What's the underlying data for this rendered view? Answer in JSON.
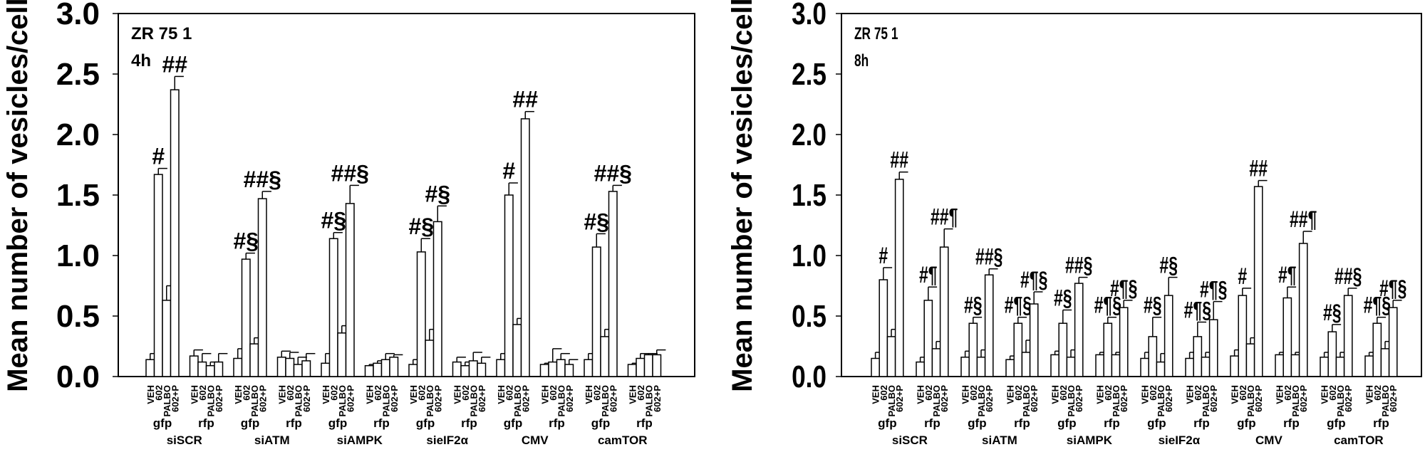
{
  "chart_data": [
    {
      "type": "bar",
      "title_lines": [
        "ZR 75 1",
        "4h"
      ],
      "ylabel": "Mean number of vesicles/cell",
      "ylim": [
        0,
        3
      ],
      "yticks": [
        "0.0",
        "0.5",
        "1.0",
        "1.5",
        "2.0",
        "2.5",
        "3.0"
      ],
      "treatments": [
        "VEH",
        "602",
        "PALBO",
        "602+P"
      ],
      "clusters": [
        {
          "group": "siSCR",
          "cell": "gfp",
          "values": [
            0.14,
            1.67,
            0.63,
            2.37
          ],
          "err_upper": [
            0.19,
            1.72,
            0.75,
            2.48
          ],
          "annotations": [
            "",
            "#",
            "",
            "##"
          ]
        },
        {
          "group": "siSCR",
          "cell": "rfp",
          "values": [
            0.17,
            0.12,
            0.09,
            0.12
          ],
          "err_upper": [
            0.22,
            0.19,
            0.12,
            0.19
          ],
          "annotations": [
            "",
            "",
            "",
            ""
          ]
        },
        {
          "group": "siATM",
          "cell": "gfp",
          "values": [
            0.15,
            0.97,
            0.27,
            1.47
          ],
          "err_upper": [
            0.23,
            1.02,
            0.32,
            1.53
          ],
          "annotations": [
            "",
            "#§",
            "",
            "##§"
          ]
        },
        {
          "group": "siATM",
          "cell": "rfp",
          "values": [
            0.16,
            0.15,
            0.1,
            0.13
          ],
          "err_upper": [
            0.21,
            0.2,
            0.16,
            0.19
          ],
          "annotations": [
            "",
            "",
            "",
            ""
          ]
        },
        {
          "group": "siAMPK",
          "cell": "gfp",
          "values": [
            0.11,
            1.14,
            0.36,
            1.43
          ],
          "err_upper": [
            0.19,
            1.19,
            0.42,
            1.58
          ],
          "annotations": [
            "",
            "#§",
            "",
            "##§"
          ]
        },
        {
          "group": "siAMPK",
          "cell": "rfp",
          "values": [
            0.09,
            0.11,
            0.14,
            0.16
          ],
          "err_upper": [
            0.1,
            0.13,
            0.19,
            0.18
          ],
          "annotations": [
            "",
            "",
            "",
            ""
          ]
        },
        {
          "group": "sieIF2α",
          "cell": "gfp",
          "values": [
            0.1,
            1.03,
            0.3,
            1.28
          ],
          "err_upper": [
            0.14,
            1.14,
            0.39,
            1.41
          ],
          "annotations": [
            "",
            "#§",
            "",
            "#§"
          ]
        },
        {
          "group": "sieIF2α",
          "cell": "rfp",
          "values": [
            0.12,
            0.09,
            0.13,
            0.11
          ],
          "err_upper": [
            0.16,
            0.12,
            0.2,
            0.16
          ],
          "annotations": [
            "",
            "",
            "",
            ""
          ]
        },
        {
          "group": "CMV",
          "cell": "gfp",
          "values": [
            0.14,
            1.5,
            0.43,
            2.13
          ],
          "err_upper": [
            0.19,
            1.6,
            0.48,
            2.19
          ],
          "annotations": [
            "",
            "#",
            "",
            "##"
          ]
        },
        {
          "group": "CMV",
          "cell": "rfp",
          "values": [
            0.1,
            0.12,
            0.14,
            0.1
          ],
          "err_upper": [
            0.11,
            0.23,
            0.19,
            0.14
          ],
          "annotations": [
            "",
            "",
            "",
            ""
          ]
        },
        {
          "group": "camTOR",
          "cell": "gfp",
          "values": [
            0.14,
            1.07,
            0.33,
            1.53
          ],
          "err_upper": [
            0.19,
            1.18,
            0.39,
            1.58
          ],
          "annotations": [
            "",
            "#§",
            "",
            "##§"
          ]
        },
        {
          "group": "camTOR",
          "cell": "rfp",
          "values": [
            0.1,
            0.15,
            0.18,
            0.18
          ],
          "err_upper": [
            0.11,
            0.19,
            0.19,
            0.22
          ],
          "annotations": [
            "",
            "",
            "",
            ""
          ]
        }
      ]
    },
    {
      "type": "bar",
      "title_lines": [
        "ZR 75 1",
        "8h"
      ],
      "ylabel": "Mean number of vesicles/cell",
      "ylim": [
        0,
        3
      ],
      "yticks": [
        "0.0",
        "0.5",
        "1.0",
        "1.5",
        "2.0",
        "2.5",
        "3.0"
      ],
      "treatments": [
        "VEH",
        "602",
        "PALBO",
        "602+P"
      ],
      "clusters": [
        {
          "group": "siSCR",
          "cell": "gfp",
          "values": [
            0.15,
            0.8,
            0.33,
            1.63
          ],
          "err_upper": [
            0.2,
            0.9,
            0.39,
            1.69
          ],
          "annotations": [
            "",
            "#",
            "",
            "##"
          ]
        },
        {
          "group": "siSCR",
          "cell": "rfp",
          "values": [
            0.12,
            0.63,
            0.23,
            1.07
          ],
          "err_upper": [
            0.16,
            0.74,
            0.29,
            1.22
          ],
          "annotations": [
            "",
            "#¶",
            "",
            "##¶"
          ]
        },
        {
          "group": "siATM",
          "cell": "gfp",
          "values": [
            0.16,
            0.44,
            0.16,
            0.84
          ],
          "err_upper": [
            0.21,
            0.49,
            0.22,
            0.89
          ],
          "annotations": [
            "",
            "#§",
            "",
            "##§"
          ]
        },
        {
          "group": "siATM",
          "cell": "rfp",
          "values": [
            0.14,
            0.44,
            0.2,
            0.6
          ],
          "err_upper": [
            0.17,
            0.49,
            0.3,
            0.7
          ],
          "annotations": [
            "",
            "#¶§",
            "",
            "#¶§"
          ]
        },
        {
          "group": "siAMPK",
          "cell": "gfp",
          "values": [
            0.18,
            0.44,
            0.16,
            0.77
          ],
          "err_upper": [
            0.21,
            0.55,
            0.22,
            0.82
          ],
          "annotations": [
            "",
            "#§",
            "",
            "##§"
          ]
        },
        {
          "group": "siAMPK",
          "cell": "rfp",
          "values": [
            0.18,
            0.44,
            0.18,
            0.57
          ],
          "err_upper": [
            0.2,
            0.49,
            0.2,
            0.63
          ],
          "annotations": [
            "",
            "#¶§",
            "",
            "#¶§"
          ]
        },
        {
          "group": "sieIF2α",
          "cell": "gfp",
          "values": [
            0.15,
            0.33,
            0.12,
            0.67
          ],
          "err_upper": [
            0.2,
            0.49,
            0.19,
            0.82
          ],
          "annotations": [
            "",
            "#§",
            "",
            "#§"
          ]
        },
        {
          "group": "sieIF2α",
          "cell": "rfp",
          "values": [
            0.15,
            0.33,
            0.16,
            0.47
          ],
          "err_upper": [
            0.2,
            0.45,
            0.2,
            0.62
          ],
          "annotations": [
            "",
            "#¶§",
            "",
            "#¶§"
          ]
        },
        {
          "group": "CMV",
          "cell": "gfp",
          "values": [
            0.17,
            0.67,
            0.27,
            1.57
          ],
          "err_upper": [
            0.22,
            0.73,
            0.32,
            1.62
          ],
          "annotations": [
            "",
            "#",
            "",
            "##"
          ]
        },
        {
          "group": "CMV",
          "cell": "rfp",
          "values": [
            0.18,
            0.65,
            0.18,
            1.1
          ],
          "err_upper": [
            0.2,
            0.74,
            0.2,
            1.2
          ],
          "annotations": [
            "",
            "#¶",
            "",
            "##¶"
          ]
        },
        {
          "group": "camTOR",
          "cell": "gfp",
          "values": [
            0.16,
            0.37,
            0.16,
            0.67
          ],
          "err_upper": [
            0.2,
            0.43,
            0.2,
            0.73
          ],
          "annotations": [
            "",
            "#§",
            "",
            "##§"
          ]
        },
        {
          "group": "camTOR",
          "cell": "rfp",
          "values": [
            0.17,
            0.44,
            0.23,
            0.57
          ],
          "err_upper": [
            0.2,
            0.49,
            0.29,
            0.63
          ],
          "annotations": [
            "",
            "#¶§",
            "",
            "#¶§"
          ]
        }
      ]
    }
  ]
}
